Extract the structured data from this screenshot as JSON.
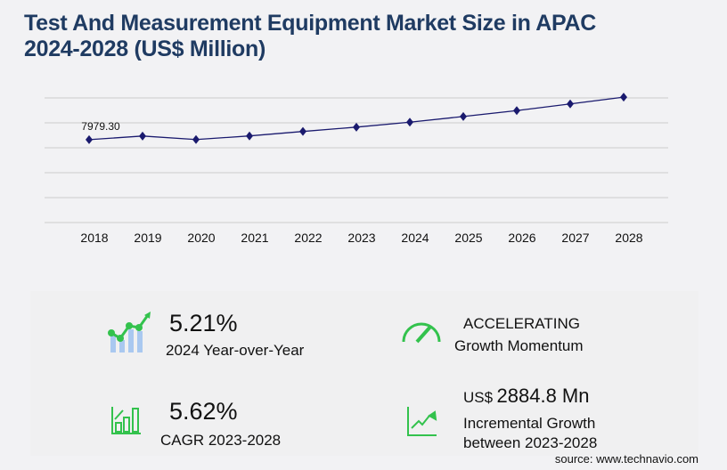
{
  "title_line1": "Test And Measurement Equipment Market Size in APAC",
  "title_line2": "2024-2028 (US$ Million)",
  "chart_data": {
    "type": "line",
    "categories": [
      "2018",
      "2019",
      "2020",
      "2021",
      "2022",
      "2023",
      "2024",
      "2025",
      "2026",
      "2027",
      "2028"
    ],
    "values": [
      7979.3,
      8330,
      7990,
      8340,
      8770,
      9187,
      9666,
      10210,
      10780,
      11420,
      12072
    ],
    "data_labels": {
      "2018": "7979.30"
    },
    "ylim": [
      0,
      12000
    ],
    "grid": true,
    "color": "#1a1a6e"
  },
  "stats": {
    "yoy_value": "5.21%",
    "yoy_label": "2024 Year-over-Year",
    "momentum_value": "ACCELERATING",
    "momentum_label": "Growth Momentum",
    "cagr_value": "5.62%",
    "cagr_label": "CAGR 2023-2028",
    "inc_prefix": "US$",
    "inc_value": "2884.8 Mn",
    "inc_label1": "Incremental Growth",
    "inc_label2": "between 2023-2028"
  },
  "source": "source: www.technavio.com",
  "colors": {
    "title": "#1f3b62",
    "icon_green": "#33c24d",
    "icon_blue": "#a9c8f0"
  }
}
